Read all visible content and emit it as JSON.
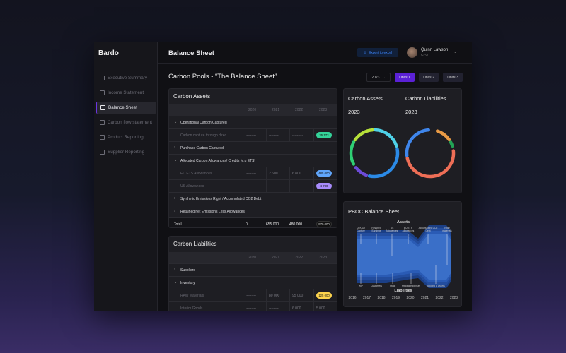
{
  "app": {
    "name": "Bardo",
    "page_title": "Balance Sheet"
  },
  "sidebar": {
    "items": [
      {
        "label": "Executive Summary",
        "icon": "chart-icon"
      },
      {
        "label": "Income Statement",
        "icon": "database-icon"
      },
      {
        "label": "Balance Sheet",
        "icon": "balance-icon",
        "active": true
      },
      {
        "label": "Carbon flow statement",
        "icon": "bar-chart-icon"
      },
      {
        "label": "Product Reporting",
        "icon": "pie-icon"
      },
      {
        "label": "Supplier Reporting",
        "icon": "users-icon"
      }
    ]
  },
  "header": {
    "export_label": "Export to excel",
    "user_name": "Quinn Lawson",
    "user_role": "CFO"
  },
  "toolbar": {
    "section_title": "Carbon Pools  - “The Balance Sheet”",
    "year": "2023",
    "units": [
      "Units 1",
      "Units 2",
      "Units 3"
    ]
  },
  "assets": {
    "title": "Carbon Assets",
    "years": [
      "2020",
      "2021",
      "2022",
      "2023"
    ],
    "rows": [
      {
        "type": "group",
        "expanded": true,
        "label": "Operational Carbon Captured"
      },
      {
        "type": "sub",
        "label": "Carbon capture through direc...",
        "values": [
          "---------",
          "---------",
          "---------",
          "35 173"
        ],
        "pill": "#34d399"
      },
      {
        "type": "group",
        "expanded": false,
        "label": "Purchase Carbon Captured"
      },
      {
        "type": "group",
        "expanded": true,
        "label": "Allocated Carbon Allowances/ Credits (e.g ETS)"
      },
      {
        "type": "sub",
        "label": "EU ETS Allowances",
        "values": [
          "---------",
          "2 600",
          "6 800",
          "485 000"
        ],
        "pill": "#60a5fa"
      },
      {
        "type": "sub",
        "label": "US Allowances",
        "values": [
          "---------",
          "---------",
          "---------",
          "4 730"
        ],
        "pill": "#a78bfa"
      },
      {
        "type": "group",
        "expanded": false,
        "label": "Synthetic Emissions Right / Accumulated CO2 Debt"
      },
      {
        "type": "group",
        "expanded": false,
        "label": "Retained net Emissions Less  Allowances"
      }
    ],
    "total": {
      "label": "Total",
      "values": [
        "0",
        "655 000",
        "480 000",
        "970 000"
      ]
    }
  },
  "liabilities": {
    "title": "Carbon Liabilities",
    "years": [
      "2020",
      "2021",
      "2022",
      "2023"
    ],
    "rows": [
      {
        "type": "group",
        "expanded": false,
        "label": "Suppliers"
      },
      {
        "type": "group",
        "expanded": true,
        "label": "Inventory"
      },
      {
        "type": "sub",
        "label": "RAW Materials",
        "values": [
          "---------",
          "80 000",
          "95 000",
          "125 000"
        ],
        "pill": "#fcd34d"
      },
      {
        "type": "sub",
        "label": "Interim Goods",
        "values": [
          "---------",
          "---------",
          "6 000",
          "5 000"
        ]
      }
    ]
  },
  "donuts": {
    "assets_title": "Carbon Assets",
    "assets_year": "2023",
    "liab_title": "Carbon Liabilities",
    "liab_year": "2023",
    "assets_segments": [
      {
        "color": "#4fd1e8",
        "from": 2,
        "to": 72
      },
      {
        "color": "#2b8ae6",
        "from": 80,
        "to": 192
      },
      {
        "color": "#6d4bd8",
        "from": 200,
        "to": 232
      },
      {
        "color": "#2fcf74",
        "from": 242,
        "to": 298
      },
      {
        "color": "#b6e03a",
        "from": 305,
        "to": 356
      }
    ],
    "liab_segments": [
      {
        "color": "#e89a45",
        "from": 18,
        "to": 55
      },
      {
        "color": "#22a355",
        "from": 62,
        "to": 72
      },
      {
        "color": "#ee6e56",
        "from": 84,
        "to": 258
      },
      {
        "color": "#3f86ec",
        "from": 264,
        "to": 356
      }
    ]
  },
  "pboc": {
    "title": "PBOC Balance Sheet",
    "assets_label": "Assets",
    "liabilities_label": "Liabilities",
    "asset_labels": [
      "CP/CO2 Capture",
      "Retained Earnings",
      "US Allowances",
      "EU ETS Allowances",
      "Accumulated CO2 Debt",
      "RAW materials"
    ],
    "liability_labels": [
      "WIP",
      "Customers",
      "Stock",
      "Prepaid expenses",
      "Building & Assets"
    ],
    "years": [
      "2016",
      "2017",
      "2018",
      "2019",
      "2020",
      "2021",
      "2022",
      "2023"
    ]
  }
}
